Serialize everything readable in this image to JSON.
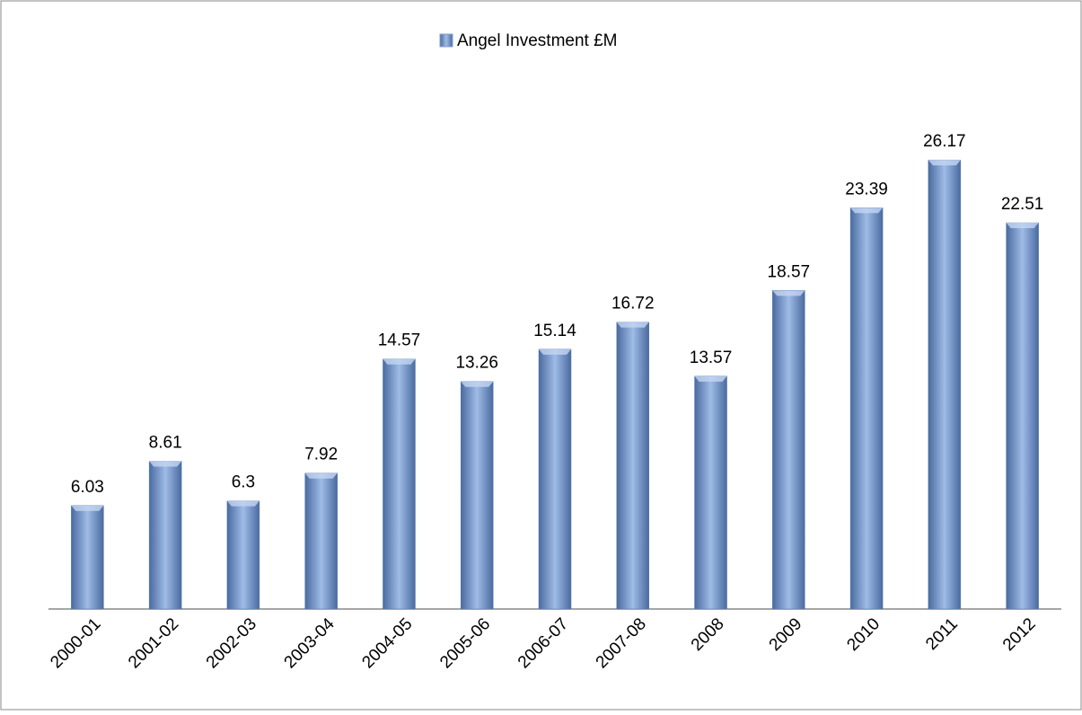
{
  "chart_data": {
    "type": "bar",
    "categories": [
      "2000-01",
      "2001-02",
      "2002-03",
      "2003-04",
      "2004-05",
      "2005-06",
      "2006-07",
      "2007-08",
      "2008",
      "2009",
      "2010",
      "2011",
      "2012"
    ],
    "series": [
      {
        "name": "Angel Investment £M",
        "color": "#7f9fd3",
        "values": [
          6.03,
          8.61,
          6.3,
          7.92,
          14.57,
          13.26,
          15.14,
          16.72,
          13.57,
          18.57,
          23.39,
          26.17,
          22.51
        ]
      }
    ],
    "ylim": [
      0,
      30
    ],
    "legend": "top"
  }
}
